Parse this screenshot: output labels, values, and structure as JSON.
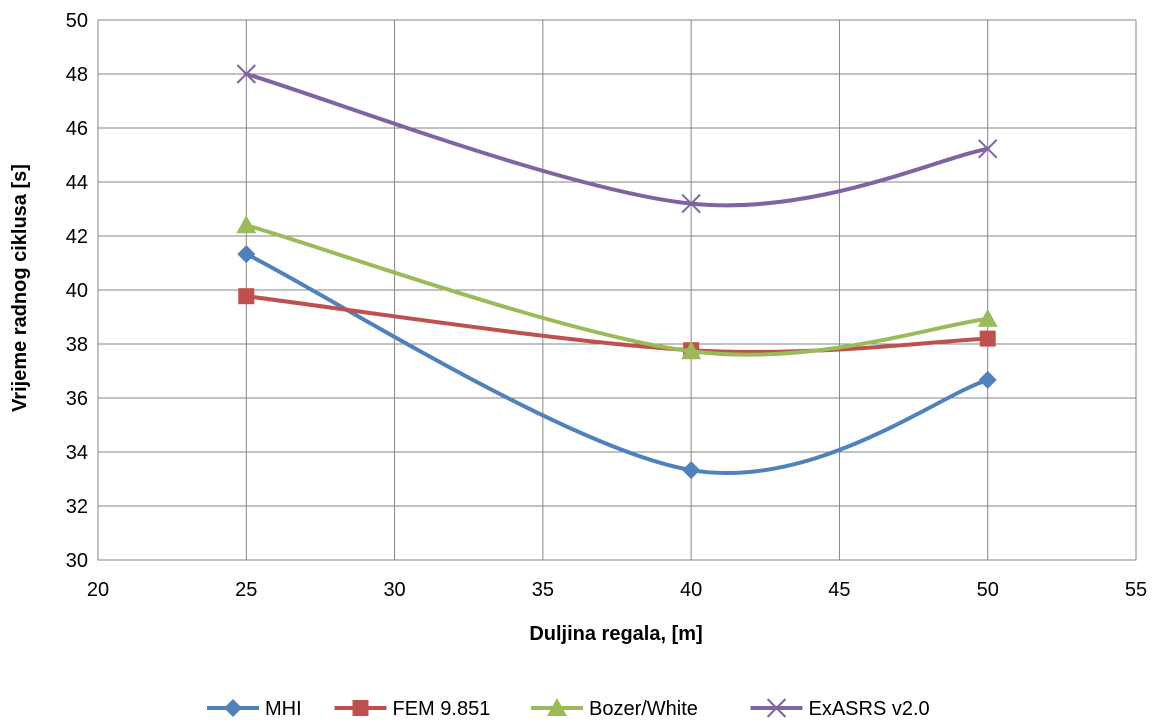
{
  "chart_data": {
    "type": "line",
    "title": "",
    "xlabel": "Duljina regala, [m]",
    "ylabel": "Vrijeme radnog ciklusa [s]",
    "xlim": [
      20,
      55
    ],
    "ylim": [
      30,
      50
    ],
    "xticks": [
      20,
      25,
      30,
      35,
      40,
      45,
      50,
      55
    ],
    "yticks": [
      30,
      32,
      34,
      36,
      38,
      40,
      42,
      44,
      46,
      48,
      50
    ],
    "grid": true,
    "smooth": true,
    "legend_position": "bottom",
    "x": [
      25,
      40,
      50
    ],
    "series": [
      {
        "name": "MHI",
        "values": [
          41.33,
          33.33,
          36.67
        ],
        "color": "#4f81bd",
        "marker": "diamond"
      },
      {
        "name": "FEM 9.851",
        "values": [
          39.77,
          37.77,
          38.2
        ],
        "color": "#c0504d",
        "marker": "square"
      },
      {
        "name": "Bozer/White",
        "values": [
          42.4,
          37.73,
          38.93
        ],
        "color": "#9bbb59",
        "marker": "triangle"
      },
      {
        "name": "ExASRS v2.0",
        "values": [
          48.0,
          43.2,
          45.23
        ],
        "color": "#8064a2",
        "marker": "x"
      }
    ]
  }
}
